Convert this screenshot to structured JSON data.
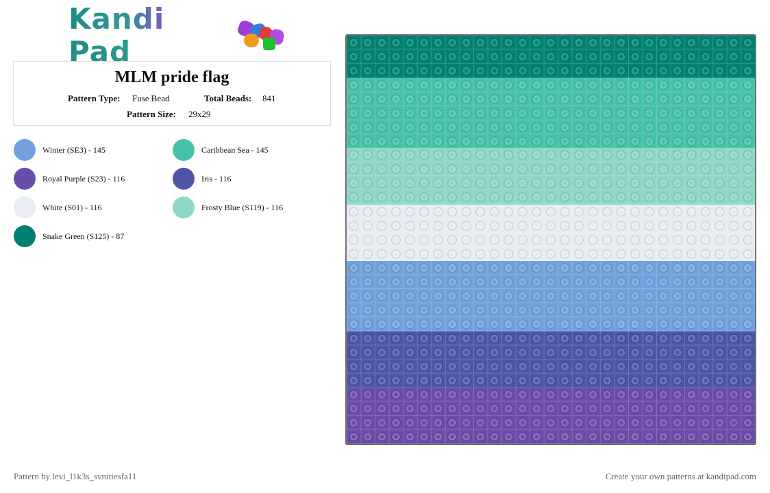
{
  "brand": {
    "name": "Kandi Pad"
  },
  "pattern": {
    "title": "MLM pride flag",
    "type_label": "Pattern Type:",
    "type_value": "Fuse Bead",
    "beads_label": "Total Beads:",
    "beads_value": "841",
    "size_label": "Pattern Size:",
    "size_value": "29x29"
  },
  "legend": [
    {
      "label": "Winter (SE3) - 145",
      "color": "#72a2de"
    },
    {
      "label": "Caribbean Sea - 145",
      "color": "#46c3a7"
    },
    {
      "label": "Royal Purple (S23) - 116",
      "color": "#6a4caa"
    },
    {
      "label": "Iris - 116",
      "color": "#4d55a6"
    },
    {
      "label": "White (S01) - 116",
      "color": "#e9edf3"
    },
    {
      "label": "Frosty Blue (S119) - 116",
      "color": "#8ed7c9"
    },
    {
      "label": "Snake Green (S125) - 87",
      "color": "#007f72"
    }
  ],
  "board": {
    "rows": 29,
    "columns": 29,
    "bands": [
      {
        "name": "Snake Green (S125)",
        "rows": 3,
        "color": "#008272"
      },
      {
        "name": "Caribbean Sea",
        "rows": 5,
        "color": "#46c3a7"
      },
      {
        "name": "Frosty Blue (S119)",
        "rows": 4,
        "color": "#8ed7c9"
      },
      {
        "name": "White (S01)",
        "rows": 4,
        "color": "#e9edf3"
      },
      {
        "name": "Winter (SE3)",
        "rows": 5,
        "color": "#72a2de"
      },
      {
        "name": "Iris",
        "rows": 4,
        "color": "#4d55a6"
      },
      {
        "name": "Royal Purple (S23)",
        "rows": 4,
        "color": "#6a4caa"
      }
    ]
  },
  "footer": {
    "credit": "Pattern by levi_l1k3s_svnitiesfa11",
    "cta": "Create your own patterns at kandipad.com"
  }
}
